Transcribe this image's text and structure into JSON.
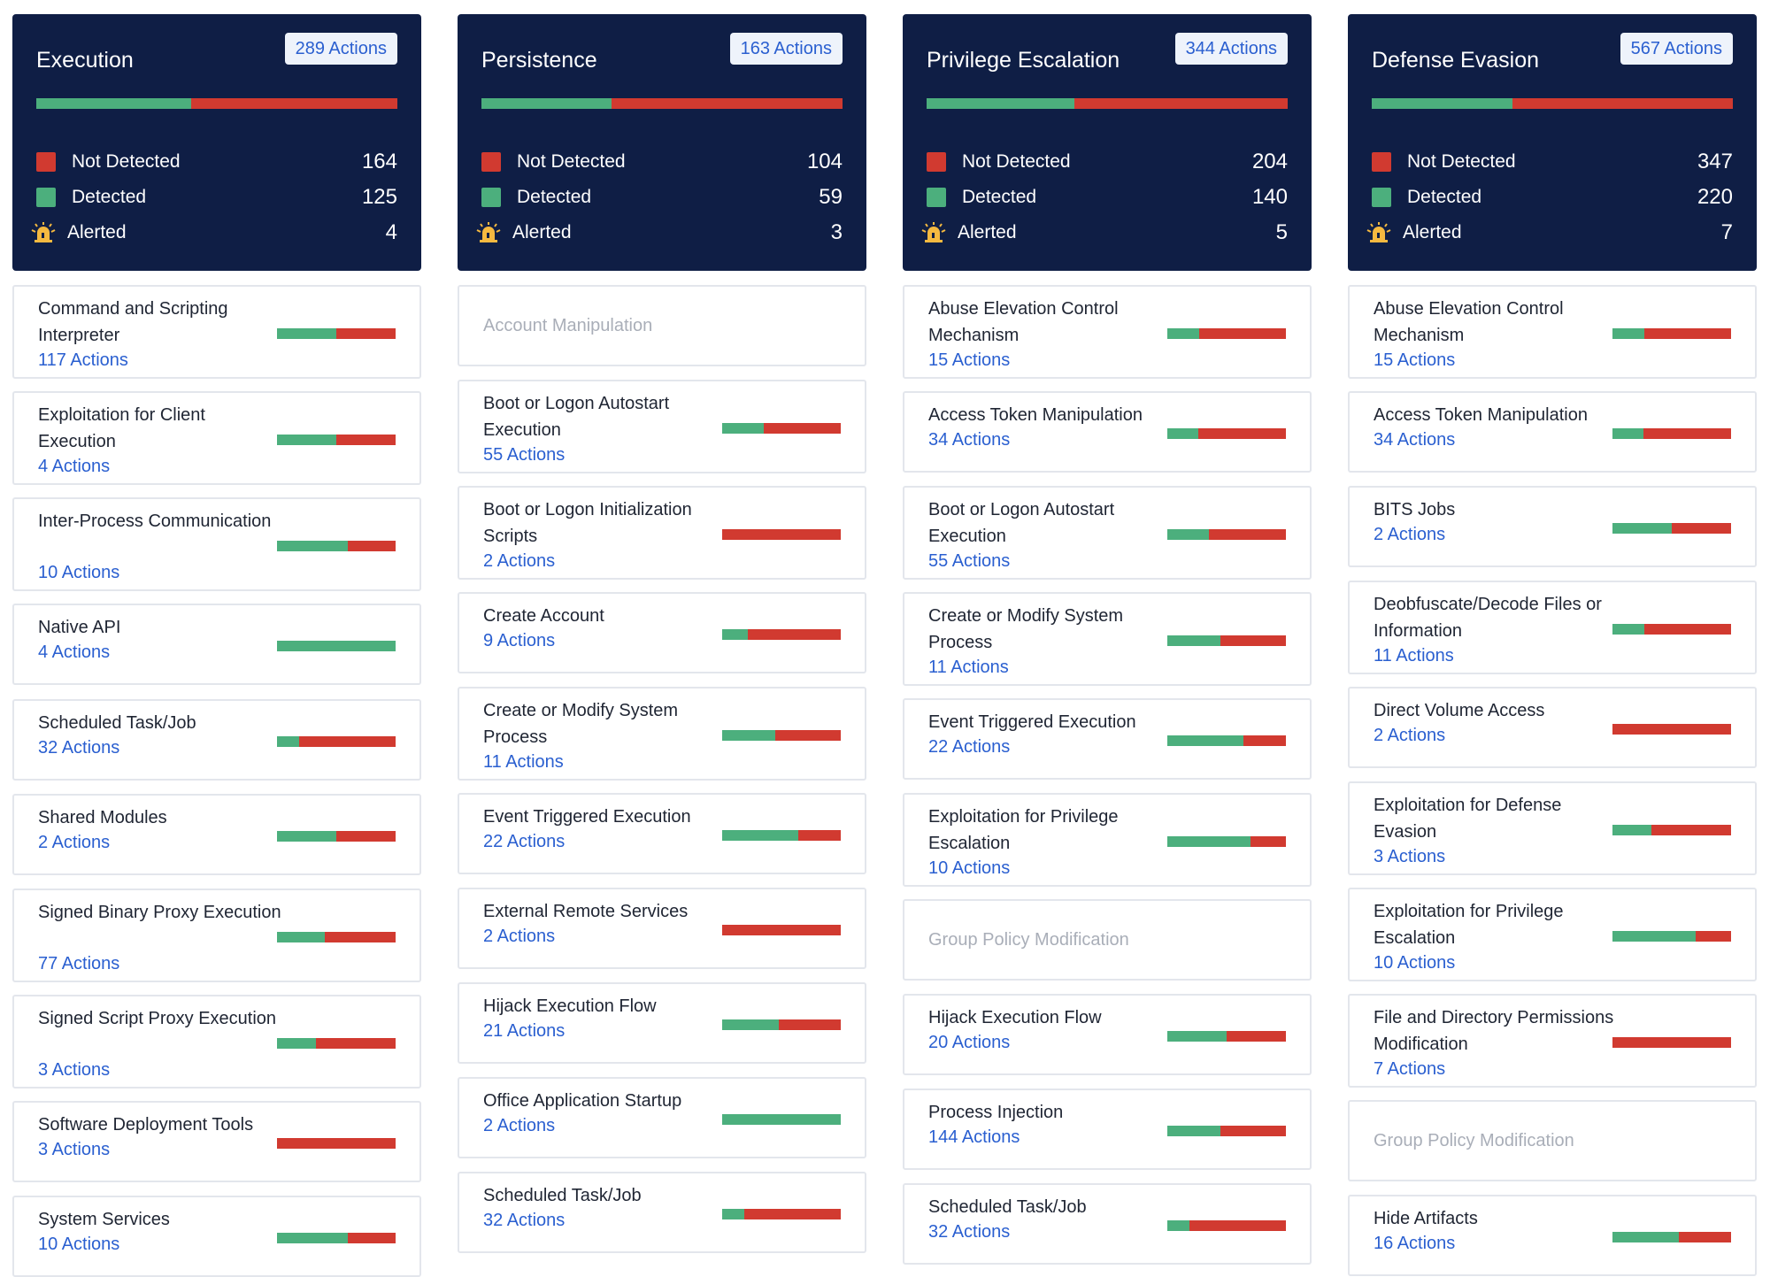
{
  "colors": {
    "header_bg": "#0f1e45",
    "detected": "#4caf7d",
    "not_detected": "#d13a30",
    "alerted": "#f5b940",
    "link": "#2a5fd0",
    "muted": "#a9aeb8"
  },
  "columns": [
    {
      "title": "Execution",
      "badge": "289 Actions",
      "detected_fraction": 0.43,
      "stats": [
        {
          "label": "Not Detected",
          "value": "164",
          "icon": "red-square-icon"
        },
        {
          "label": "Detected",
          "value": "125",
          "icon": "green-square-icon"
        },
        {
          "label": "Alerted",
          "value": "4",
          "icon": "alarm-siren-icon"
        }
      ],
      "techniques": [
        {
          "name": "Command and Scripting Interpreter",
          "count": "117 Actions",
          "detected": 0.5
        },
        {
          "name": "Exploitation for Client Execution",
          "count": "4 Actions",
          "detected": 0.5
        },
        {
          "name": "Inter-Process Communication",
          "count": "10 Actions",
          "detected": 0.6
        },
        {
          "name": "Native API",
          "count": "4 Actions",
          "detected": 1.0
        },
        {
          "name": "Scheduled Task/Job",
          "count": "32 Actions",
          "detected": 0.19
        },
        {
          "name": "Shared Modules",
          "count": "2 Actions",
          "detected": 0.5
        },
        {
          "name": "Signed Binary Proxy Execution",
          "count": "77 Actions",
          "detected": 0.4
        },
        {
          "name": "Signed Script Proxy Execution",
          "count": "3 Actions",
          "detected": 0.33
        },
        {
          "name": "Software Deployment Tools",
          "count": "3 Actions",
          "detected": 0.0
        },
        {
          "name": "System Services",
          "count": "10 Actions",
          "detected": 0.6
        }
      ]
    },
    {
      "title": "Persistence",
      "badge": "163 Actions",
      "detected_fraction": 0.36,
      "stats": [
        {
          "label": "Not Detected",
          "value": "104",
          "icon": "red-square-icon"
        },
        {
          "label": "Detected",
          "value": "59",
          "icon": "green-square-icon"
        },
        {
          "label": "Alerted",
          "value": "3",
          "icon": "alarm-siren-icon"
        }
      ],
      "techniques": [
        {
          "name": "Account Manipulation",
          "count": "",
          "detected": null
        },
        {
          "name": "Boot or Logon Autostart Execution",
          "count": "55 Actions",
          "detected": 0.35
        },
        {
          "name": "Boot or Logon Initialization Scripts",
          "count": "2 Actions",
          "detected": 0.0
        },
        {
          "name": "Create Account",
          "count": "9 Actions",
          "detected": 0.22
        },
        {
          "name": "Create or Modify System Process",
          "count": "11 Actions",
          "detected": 0.45
        },
        {
          "name": "Event Triggered Execution",
          "count": "22 Actions",
          "detected": 0.64
        },
        {
          "name": "External Remote Services",
          "count": "2 Actions",
          "detected": 0.0
        },
        {
          "name": "Hijack Execution Flow",
          "count": "21 Actions",
          "detected": 0.48
        },
        {
          "name": "Office Application Startup",
          "count": "2 Actions",
          "detected": 1.0
        },
        {
          "name": "Scheduled Task/Job",
          "count": "32 Actions",
          "detected": 0.19
        }
      ]
    },
    {
      "title": "Privilege Escalation",
      "badge": "344 Actions",
      "detected_fraction": 0.41,
      "stats": [
        {
          "label": "Not Detected",
          "value": "204",
          "icon": "red-square-icon"
        },
        {
          "label": "Detected",
          "value": "140",
          "icon": "green-square-icon"
        },
        {
          "label": "Alerted",
          "value": "5",
          "icon": "alarm-siren-icon"
        }
      ],
      "techniques": [
        {
          "name": "Abuse Elevation Control Mechanism",
          "count": "15 Actions",
          "detected": 0.27
        },
        {
          "name": "Access Token Manipulation",
          "count": "34 Actions",
          "detected": 0.26
        },
        {
          "name": "Boot or Logon Autostart Execution",
          "count": "55 Actions",
          "detected": 0.35
        },
        {
          "name": "Create or Modify System Process",
          "count": "11 Actions",
          "detected": 0.45
        },
        {
          "name": "Event Triggered Execution",
          "count": "22 Actions",
          "detected": 0.64
        },
        {
          "name": "Exploitation for Privilege Escalation",
          "count": "10 Actions",
          "detected": 0.7
        },
        {
          "name": "Group Policy Modification",
          "count": "",
          "detected": null
        },
        {
          "name": "Hijack Execution Flow",
          "count": "20 Actions",
          "detected": 0.5
        },
        {
          "name": "Process Injection",
          "count": "144 Actions",
          "detected": 0.45
        },
        {
          "name": "Scheduled Task/Job",
          "count": "32 Actions",
          "detected": 0.19
        }
      ]
    },
    {
      "title": "Defense Evasion",
      "badge": "567 Actions",
      "detected_fraction": 0.39,
      "stats": [
        {
          "label": "Not Detected",
          "value": "347",
          "icon": "red-square-icon"
        },
        {
          "label": "Detected",
          "value": "220",
          "icon": "green-square-icon"
        },
        {
          "label": "Alerted",
          "value": "7",
          "icon": "alarm-siren-icon"
        }
      ],
      "techniques": [
        {
          "name": "Abuse Elevation Control Mechanism",
          "count": "15 Actions",
          "detected": 0.27
        },
        {
          "name": "Access Token Manipulation",
          "count": "34 Actions",
          "detected": 0.26
        },
        {
          "name": "BITS Jobs",
          "count": "2 Actions",
          "detected": 0.5
        },
        {
          "name": "Deobfuscate/Decode Files or Information",
          "count": "11 Actions",
          "detected": 0.27
        },
        {
          "name": "Direct Volume Access",
          "count": "2 Actions",
          "detected": 0.0
        },
        {
          "name": "Exploitation for Defense Evasion",
          "count": "3 Actions",
          "detected": 0.33
        },
        {
          "name": "Exploitation for Privilege Escalation",
          "count": "10 Actions",
          "detected": 0.7
        },
        {
          "name": "File and Directory Permissions Modification",
          "count": "7 Actions",
          "detected": 0.0
        },
        {
          "name": "Group Policy Modification",
          "count": "",
          "detected": null
        },
        {
          "name": "Hide Artifacts",
          "count": "16 Actions",
          "detected": 0.56
        }
      ]
    }
  ]
}
